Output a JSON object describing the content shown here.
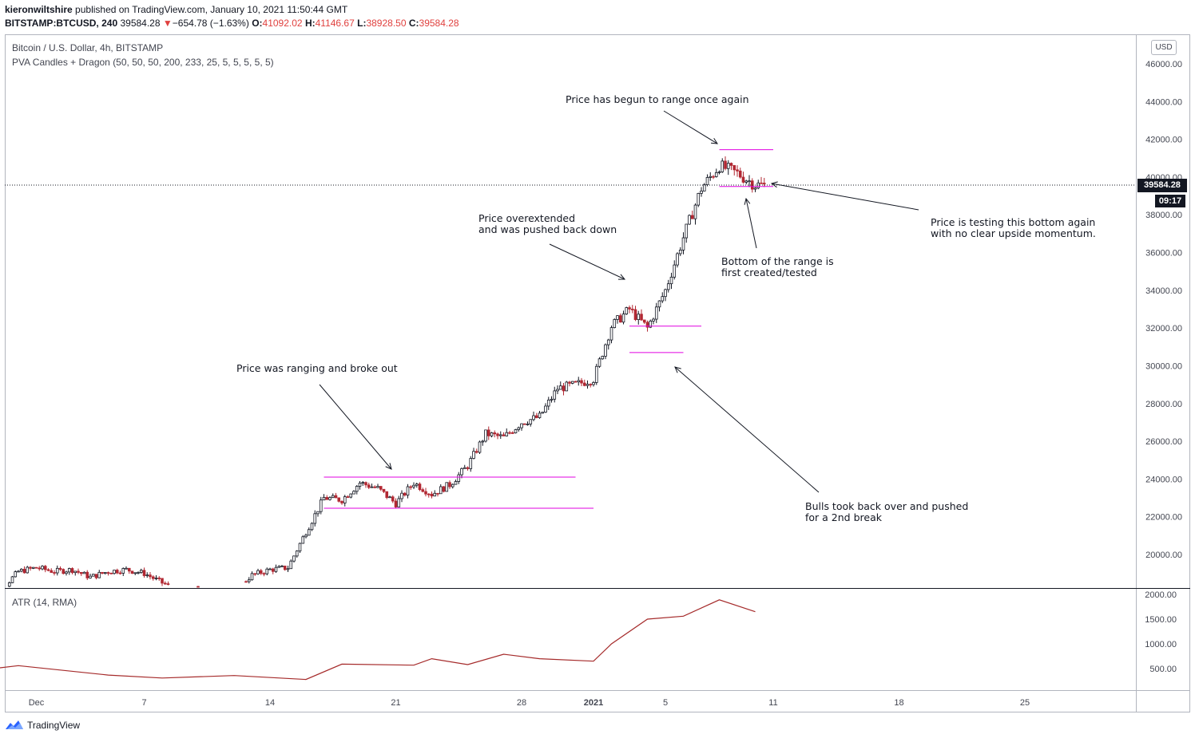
{
  "header": {
    "line1_author": "kieronwiltshire",
    "line1_rest": "published on TradingView.com, January 10, 2021 11:50:44 GMT",
    "symbol": "BITSTAMP:BTCUSD, 240",
    "last": "39584.28",
    "change_arrow": "▼",
    "change": "−654.78 (−1.63%)",
    "o_label": "O:",
    "o_value": "41092.02",
    "h_label": "H:",
    "h_value": "41146.67",
    "l_label": "L:",
    "l_value": "38928.50",
    "c_label": "C:",
    "c_value": "39584.28"
  },
  "legend": {
    "title": "Bitcoin / U.S. Dollar, 4h, BITSTAMP",
    "indicator": "PVA Candles + Dragon (50, 50, 50, 200, 233, 25, 5, 5, 5, 5, 5)",
    "atr": "ATR (14, RMA)"
  },
  "currency_badge": "USD",
  "price_tag": "39584.28",
  "countdown_tag": "09:17",
  "footer": {
    "brand": "TradingView"
  },
  "colors": {
    "up_candle": "#26a69a",
    "down_candle": "#ef5350",
    "pva_up": "#131722",
    "pva_down": "#b22833",
    "range_line": "#e000e0",
    "atr_line": "#a52a2a",
    "annotation": "#131722"
  },
  "chart_data": [
    {
      "type": "candlestick",
      "title": "Bitcoin / U.S. Dollar, 4h, BITSTAMP",
      "ylim": [
        17000,
        47000
      ],
      "yticks": [
        "20000.00",
        "22000.00",
        "24000.00",
        "26000.00",
        "28000.00",
        "30000.00",
        "32000.00",
        "34000.00",
        "36000.00",
        "38000.00",
        "40000.00",
        "42000.00",
        "44000.00",
        "46000.00"
      ],
      "xtick_labels": [
        "Dec",
        "7",
        "14",
        "21",
        "28",
        "2021",
        "5",
        "11",
        "18",
        "25"
      ],
      "series_close": [
        {
          "date": "2020-11-28",
          "close": 17800
        },
        {
          "date": "2020-11-29",
          "close": 18100
        },
        {
          "date": "2020-11-30",
          "close": 19100
        },
        {
          "date": "2020-12-01",
          "close": 19300
        },
        {
          "date": "2020-12-02",
          "close": 19100
        },
        {
          "date": "2020-12-03",
          "close": 19200
        },
        {
          "date": "2020-12-04",
          "close": 18800
        },
        {
          "date": "2020-12-05",
          "close": 19100
        },
        {
          "date": "2020-12-06",
          "close": 19200
        },
        {
          "date": "2020-12-07",
          "close": 19000
        },
        {
          "date": "2020-12-08",
          "close": 18500
        },
        {
          "date": "2020-12-09",
          "close": 18100
        },
        {
          "date": "2020-12-10",
          "close": 18200
        },
        {
          "date": "2020-12-11",
          "close": 17800
        },
        {
          "date": "2020-12-12",
          "close": 18100
        },
        {
          "date": "2020-12-13",
          "close": 18900
        },
        {
          "date": "2020-12-14",
          "close": 19200
        },
        {
          "date": "2020-12-15",
          "close": 19300
        },
        {
          "date": "2020-12-16",
          "close": 21200
        },
        {
          "date": "2020-12-17",
          "close": 23000
        },
        {
          "date": "2020-12-18",
          "close": 22900
        },
        {
          "date": "2020-12-19",
          "close": 23800
        },
        {
          "date": "2020-12-20",
          "close": 23500
        },
        {
          "date": "2020-12-21",
          "close": 22700
        },
        {
          "date": "2020-12-22",
          "close": 23800
        },
        {
          "date": "2020-12-23",
          "close": 23200
        },
        {
          "date": "2020-12-24",
          "close": 23700
        },
        {
          "date": "2020-12-25",
          "close": 24700
        },
        {
          "date": "2020-12-26",
          "close": 26400
        },
        {
          "date": "2020-12-27",
          "close": 26200
        },
        {
          "date": "2020-12-28",
          "close": 27000
        },
        {
          "date": "2020-12-29",
          "close": 27300
        },
        {
          "date": "2020-12-30",
          "close": 28800
        },
        {
          "date": "2020-12-31",
          "close": 29000
        },
        {
          "date": "2021-01-01",
          "close": 29300
        },
        {
          "date": "2021-01-02",
          "close": 32100
        },
        {
          "date": "2021-01-03",
          "close": 33000
        },
        {
          "date": "2021-01-04",
          "close": 32000
        },
        {
          "date": "2021-01-05",
          "close": 34000
        },
        {
          "date": "2021-01-06",
          "close": 36800
        },
        {
          "date": "2021-01-07",
          "close": 39400
        },
        {
          "date": "2021-01-08",
          "close": 40600
        },
        {
          "date": "2021-01-09",
          "close": 40200
        },
        {
          "date": "2021-01-10",
          "close": 39584.28
        }
      ],
      "range_levels": [
        {
          "from": "2020-12-17",
          "to": "2020-12-31",
          "price": 24100
        },
        {
          "from": "2020-12-17",
          "to": "2021-01-01",
          "price": 22450
        },
        {
          "from": "2021-01-03",
          "to": "2021-01-07",
          "price": 32100
        },
        {
          "from": "2021-01-03",
          "to": "2021-01-06",
          "price": 30700
        },
        {
          "from": "2021-01-08",
          "to": "2021-01-11",
          "price": 41450
        },
        {
          "from": "2021-01-08",
          "to": "2021-01-11",
          "price": 39500
        }
      ],
      "last_price": 39584.28
    },
    {
      "type": "line",
      "title": "ATR (14, RMA)",
      "ylim": [
        100,
        2200
      ],
      "yticks": [
        "500.00",
        "1000.00",
        "1500.00",
        "2000.00"
      ],
      "values": [
        {
          "date": "2020-11-27",
          "value": 430
        },
        {
          "date": "2020-11-30",
          "value": 560
        },
        {
          "date": "2020-12-05",
          "value": 370
        },
        {
          "date": "2020-12-08",
          "value": 310
        },
        {
          "date": "2020-12-12",
          "value": 360
        },
        {
          "date": "2020-12-16",
          "value": 280
        },
        {
          "date": "2020-12-18",
          "value": 590
        },
        {
          "date": "2020-12-22",
          "value": 570
        },
        {
          "date": "2020-12-23",
          "value": 700
        },
        {
          "date": "2020-12-25",
          "value": 580
        },
        {
          "date": "2020-12-27",
          "value": 790
        },
        {
          "date": "2020-12-29",
          "value": 700
        },
        {
          "date": "2021-01-01",
          "value": 650
        },
        {
          "date": "2021-01-02",
          "value": 1000
        },
        {
          "date": "2021-01-04",
          "value": 1500
        },
        {
          "date": "2021-01-06",
          "value": 1560
        },
        {
          "date": "2021-01-08",
          "value": 1890
        },
        {
          "date": "2021-01-10",
          "value": 1650
        }
      ]
    }
  ],
  "annotations": [
    {
      "lines": [
        "Price has begun to range once again"
      ]
    },
    {
      "lines": [
        "Price overextended",
        "and was pushed back down"
      ]
    },
    {
      "lines": [
        "Price is testing this bottom again",
        "with no clear upside momentum."
      ]
    },
    {
      "lines": [
        "Bottom of the range is",
        "first created/tested"
      ]
    },
    {
      "lines": [
        "Price was ranging and broke out"
      ]
    },
    {
      "lines": [
        "Bulls took back over and pushed",
        "for a 2nd break"
      ]
    }
  ]
}
